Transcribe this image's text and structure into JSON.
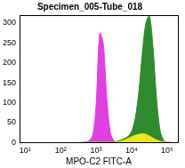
{
  "chart_data": {
    "type": "area",
    "title": "Specimen_005-Tube_018",
    "x_label": "MPO-C2 FITC-A",
    "log": "x",
    "grid": false,
    "x": [
      400,
      500,
      630,
      800,
      1000,
      1260,
      1580,
      2000,
      2510,
      3160,
      3980,
      5010,
      6310,
      7940,
      10000,
      12600,
      15800,
      20000,
      25100,
      31600,
      39800,
      50100,
      63100,
      79400,
      100000,
      126000
    ],
    "series": [
      {
        "color": "#e8e820",
        "values": [
          0,
          0,
          0,
          0,
          0,
          0,
          0,
          0,
          0,
          0,
          1,
          3,
          6,
          10,
          14,
          18,
          20,
          22,
          20,
          16,
          11,
          6,
          3,
          1,
          0,
          0
        ]
      },
      {
        "color": "#2f8a2f",
        "values": [
          0,
          0,
          0,
          0,
          0,
          0,
          0,
          0,
          0,
          1,
          3,
          6,
          10,
          15,
          28,
          60,
          125,
          225,
          300,
          318,
          240,
          110,
          30,
          5,
          0,
          0
        ]
      },
      {
        "color": "#e040e0",
        "values": [
          0,
          1,
          4,
          18,
          95,
          275,
          250,
          110,
          25,
          4,
          0,
          0,
          0,
          0,
          0,
          0,
          0,
          0,
          0,
          0,
          0,
          0,
          0,
          0,
          0,
          0
        ]
      }
    ],
    "xlim": [
      7,
      200000
    ],
    "xticks": [
      {
        "value": 10,
        "label": "10¹"
      },
      {
        "value": 100,
        "label": "10²"
      },
      {
        "value": 1000,
        "label": "10³"
      },
      {
        "value": 10000,
        "label": "10⁴"
      },
      {
        "value": 100000,
        "label": "10⁵"
      }
    ],
    "ylim": [
      0,
      320
    ],
    "yticks": [
      0,
      50,
      100,
      150,
      200,
      250,
      300
    ]
  }
}
